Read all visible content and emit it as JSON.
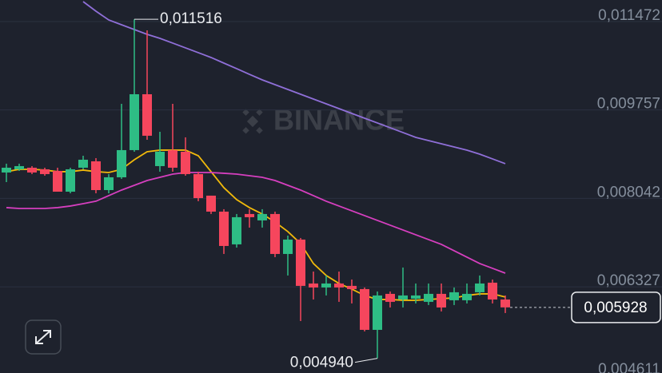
{
  "chart_data": {
    "type": "candlestick",
    "watermark": "BINANCE",
    "background": "#1e222d",
    "up_color": "#2ebd85",
    "down_color": "#f6465d",
    "open": [
      0.008544,
      0.008606,
      0.008637,
      0.008606,
      0.008575,
      0.008172,
      0.008637,
      0.008761,
      0.008203,
      0.008451,
      0.008978,
      0.010062,
      0.008668,
      0.008978,
      0.008947,
      0.008513,
      0.008095,
      0.007785,
      0.00715,
      0.007739,
      0.007615,
      0.007739,
      0.006964,
      0.007243,
      0.006391,
      0.006314,
      0.006391,
      0.006345,
      0.006283,
      0.005492,
      0.00619,
      0.006081,
      0.006097,
      0.006035,
      0.00619,
      0.006066,
      0.006066,
      0.006221,
      0.006407,
      0.006081
    ],
    "high": [
      0.008715,
      0.008715,
      0.008668,
      0.008637,
      0.008637,
      0.008637,
      0.008869,
      0.008823,
      0.008513,
      0.009876,
      0.011516,
      0.011301,
      0.009334,
      0.009876,
      0.009226,
      0.00856,
      0.008095,
      0.007832,
      0.007739,
      0.007832,
      0.007832,
      0.007785,
      0.00732,
      0.007274,
      0.006623,
      0.006546,
      0.006623,
      0.006468,
      0.006314,
      0.006236,
      0.006236,
      0.006701,
      0.006391,
      0.006391,
      0.006391,
      0.006314,
      0.006391,
      0.006546,
      0.006468,
      0.006159
    ],
    "low": [
      0.008358,
      0.008575,
      0.008513,
      0.008482,
      0.008172,
      0.008141,
      0.008606,
      0.008141,
      0.008141,
      0.00842,
      0.008947,
      0.009179,
      0.00856,
      0.00856,
      0.008482,
      0.007987,
      0.007739,
      0.006964,
      0.007088,
      0.007475,
      0.007475,
      0.006902,
      0.006546,
      0.005663,
      0.006081,
      0.006159,
      0.006035,
      0.006004,
      0.005462,
      0.00494,
      0.005926,
      0.005926,
      0.006004,
      0.005973,
      0.005849,
      0.005973,
      0.006004,
      0.006159,
      0.006004,
      0.005818
    ],
    "close": [
      0.008637,
      0.008668,
      0.008544,
      0.008513,
      0.008172,
      0.008606,
      0.008792,
      0.008203,
      0.008451,
      0.008978,
      0.010062,
      0.009257,
      0.008947,
      0.008637,
      0.008513,
      0.008048,
      0.007785,
      0.007119,
      0.007677,
      0.007677,
      0.007739,
      0.006964,
      0.007243,
      0.006345,
      0.006314,
      0.006391,
      0.006314,
      0.006283,
      0.005492,
      0.006159,
      0.006035,
      0.006159,
      0.006159,
      0.00619,
      0.005926,
      0.006221,
      0.00619,
      0.006391,
      0.006081,
      0.005928
    ],
    "lines": [
      {
        "color": "#f0b90b",
        "values": [
          0.00856,
          0.008606,
          0.008606,
          0.008591,
          0.00856,
          0.00856,
          0.008591,
          0.00856,
          0.008544,
          0.008606,
          0.008792,
          0.008947,
          0.008978,
          0.008978,
          0.008978,
          0.008869,
          0.00856,
          0.00825,
          0.008018,
          0.007863,
          0.007739,
          0.007584,
          0.007398,
          0.007166,
          0.006778,
          0.006546,
          0.006391,
          0.006283,
          0.006159,
          0.006081,
          0.006081,
          0.006066,
          0.006066,
          0.006081,
          0.006097,
          0.006112,
          0.006159,
          0.00619,
          0.00619,
          0.006128
        ]
      },
      {
        "color": "#d63fbf",
        "values": [
          0.007863,
          0.007847,
          0.007847,
          0.007847,
          0.007863,
          0.007894,
          0.00794,
          0.007987,
          0.008095,
          0.008203,
          0.008296,
          0.008389,
          0.008451,
          0.008513,
          0.008544,
          0.008544,
          0.008544,
          0.008529,
          0.008513,
          0.008482,
          0.008451,
          0.008389,
          0.008296,
          0.008203,
          0.008095,
          0.007987,
          0.007894,
          0.007801,
          0.007708,
          0.007615,
          0.007522,
          0.007429,
          0.007336,
          0.007243,
          0.00715,
          0.007026,
          0.006902,
          0.006778,
          0.006685,
          0.006592
        ]
      },
      {
        "color": "#8f6fd8",
        "values": [
          null,
          null,
          null,
          null,
          null,
          null,
          0.011859,
          0.011673,
          0.011503,
          0.01141,
          0.011317,
          0.011224,
          0.011146,
          0.011054,
          0.010961,
          0.010868,
          0.010775,
          0.010666,
          0.010558,
          0.010449,
          0.010341,
          0.010248,
          0.010155,
          0.010062,
          0.009969,
          0.009876,
          0.009783,
          0.00969,
          0.009597,
          0.009505,
          0.009412,
          0.009319,
          0.009226,
          0.009164,
          0.009102,
          0.00904,
          0.008978,
          0.0089,
          0.008808,
          0.008715
        ]
      }
    ],
    "high_label": {
      "value": 0.011516,
      "label": "0,011516"
    },
    "low_label": {
      "value": 0.00494,
      "label": "0,004940"
    },
    "last_price": {
      "value": 0.005928,
      "label": "0,005928"
    },
    "ylim": [
      0.004655,
      0.01189
    ],
    "yticks": [
      {
        "value": 0.011472,
        "label": "0,011472"
      },
      {
        "value": 0.009757,
        "label": "0,009757"
      },
      {
        "value": 0.008042,
        "label": "0,008042"
      },
      {
        "value": 0.006327,
        "label": "0,006327"
      },
      {
        "value": 0.004611,
        "label": "0,004611"
      }
    ],
    "grid": true
  }
}
